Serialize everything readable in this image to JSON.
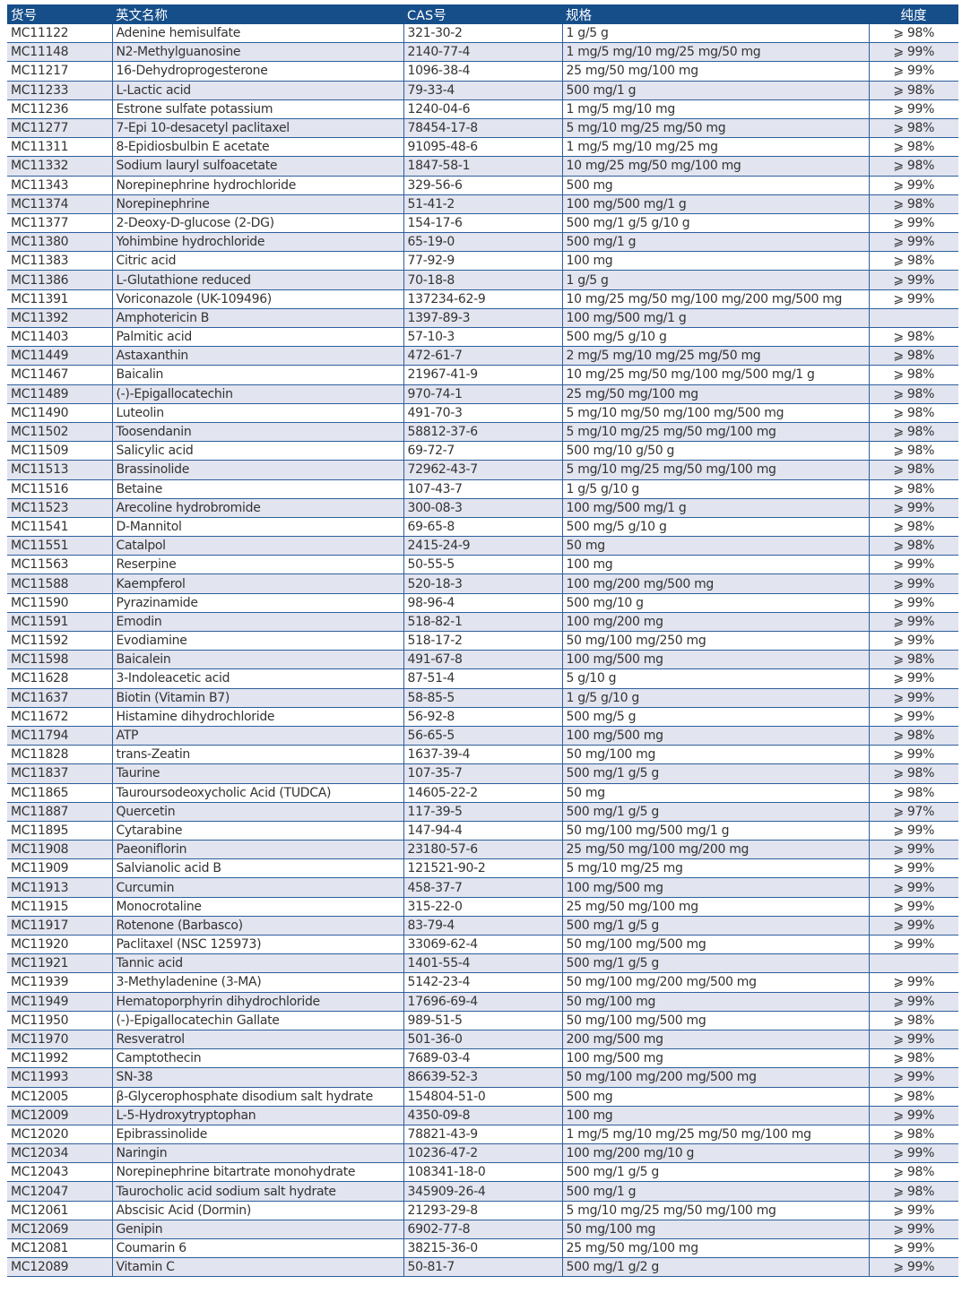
{
  "colors": {
    "header_bg": "#164e8a",
    "alt_row": "#e2e4ef",
    "grid": "#2d5f9c"
  },
  "headers": [
    "货号",
    "英文名称",
    "CAS号",
    "规格",
    "纯度"
  ],
  "rows": [
    [
      "MC11122",
      "Adenine hemisulfate",
      "321-30-2",
      "1 g/5 g",
      "⩾ 98%"
    ],
    [
      "MC11148",
      "N2-Methylguanosine",
      "2140-77-4",
      "1 mg/5 mg/10 mg/25 mg/50 mg",
      "⩾ 99%"
    ],
    [
      "MC11217",
      "16-Dehydroprogesterone",
      "1096-38-4",
      "25 mg/50 mg/100 mg",
      "⩾ 99%"
    ],
    [
      "MC11233",
      "L-Lactic acid",
      "79-33-4",
      "500 mg/1 g",
      "⩾ 98%"
    ],
    [
      "MC11236",
      "Estrone sulfate potassium",
      "1240-04-6",
      "1 mg/5 mg/10 mg",
      "⩾ 99%"
    ],
    [
      "MC11277",
      "7-Epi 10-desacetyl paclitaxel",
      "78454-17-8",
      "5 mg/10 mg/25 mg/50 mg",
      "⩾ 98%"
    ],
    [
      "MC11311",
      "8-Epidiosbulbin E acetate",
      "91095-48-6",
      "1 mg/5 mg/10 mg/25 mg",
      "⩾ 98%"
    ],
    [
      "MC11332",
      "Sodium lauryl sulfoacetate",
      "1847-58-1",
      "10 mg/25 mg/50 mg/100 mg",
      "⩾ 98%"
    ],
    [
      "MC11343",
      "Norepinephrine hydrochloride",
      "329-56-6",
      "500 mg",
      "⩾ 99%"
    ],
    [
      "MC11374",
      "Norepinephrine",
      "51-41-2",
      "100 mg/500 mg/1 g",
      "⩾ 98%"
    ],
    [
      "MC11377",
      "2-Deoxy-D-glucose (2-DG)",
      "154-17-6",
      "500 mg/1 g/5 g/10 g",
      "⩾ 99%"
    ],
    [
      "MC11380",
      "Yohimbine hydrochloride",
      "65-19-0",
      "500 mg/1 g",
      "⩾ 99%"
    ],
    [
      "MC11383",
      "Citric acid",
      "77-92-9",
      "100 mg",
      "⩾ 98%"
    ],
    [
      "MC11386",
      "L-Glutathione reduced",
      "70-18-8",
      "1 g/5 g",
      "⩾ 99%"
    ],
    [
      "MC11391",
      "Voriconazole (UK-109496)",
      "137234-62-9",
      "10 mg/25 mg/50 mg/100 mg/200 mg/500 mg",
      "⩾ 99%"
    ],
    [
      "MC11392",
      "Amphotericin B",
      "1397-89-3",
      "100 mg/500 mg/1 g",
      ""
    ],
    [
      "MC11403",
      "Palmitic acid",
      "57-10-3",
      "500 mg/5 g/10 g",
      "⩾ 98%"
    ],
    [
      "MC11449",
      "Astaxanthin",
      "472-61-7",
      "2 mg/5 mg/10 mg/25 mg/50 mg",
      "⩾ 98%"
    ],
    [
      "MC11467",
      "Baicalin",
      "21967-41-9",
      "10 mg/25 mg/50 mg/100 mg/500 mg/1 g",
      "⩾ 98%"
    ],
    [
      "MC11489",
      "(-)-Epigallocatechin",
      "970-74-1",
      "25 mg/50 mg/100 mg",
      "⩾ 98%"
    ],
    [
      "MC11490",
      "Luteolin",
      "491-70-3",
      "5 mg/10 mg/50 mg/100 mg/500 mg",
      "⩾ 98%"
    ],
    [
      "MC11502",
      "Toosendanin",
      "58812-37-6",
      "5 mg/10 mg/25 mg/50 mg/100 mg",
      "⩾ 98%"
    ],
    [
      "MC11509",
      "Salicylic acid",
      "69-72-7",
      "500 mg/10 g/50 g",
      "⩾ 98%"
    ],
    [
      "MC11513",
      "Brassinolide",
      "72962-43-7",
      "5 mg/10 mg/25 mg/50 mg/100 mg",
      "⩾ 98%"
    ],
    [
      "MC11516",
      "Betaine",
      "107-43-7",
      "1 g/5 g/10 g",
      "⩾ 98%"
    ],
    [
      "MC11523",
      "Arecoline hydrobromide",
      "300-08-3",
      "100 mg/500 mg/1 g",
      "⩾ 99%"
    ],
    [
      "MC11541",
      "D-Mannitol",
      "69-65-8",
      "500 mg/5 g/10 g",
      "⩾ 98%"
    ],
    [
      "MC11551",
      "Catalpol",
      "2415-24-9",
      "50 mg",
      "⩾ 98%"
    ],
    [
      "MC11563",
      "Reserpine",
      "50-55-5",
      "100 mg",
      "⩾ 99%"
    ],
    [
      "MC11588",
      "Kaempferol",
      "520-18-3",
      "100 mg/200 mg/500 mg",
      "⩾ 99%"
    ],
    [
      "MC11590",
      "Pyrazinamide",
      "98-96-4",
      "500 mg/10 g",
      "⩾ 99%"
    ],
    [
      "MC11591",
      "Emodin",
      "518-82-1",
      "100 mg/200 mg",
      "⩾ 99%"
    ],
    [
      "MC11592",
      "Evodiamine",
      "518-17-2",
      "50 mg/100 mg/250 mg",
      "⩾ 99%"
    ],
    [
      "MC11598",
      "Baicalein",
      "491-67-8",
      "100 mg/500 mg",
      "⩾ 98%"
    ],
    [
      "MC11628",
      "3-Indoleacetic acid",
      "87-51-4",
      "5 g/10 g",
      "⩾ 99%"
    ],
    [
      "MC11637",
      "Biotin (Vitamin B7)",
      "58-85-5",
      "1 g/5 g/10 g",
      "⩾ 99%"
    ],
    [
      "MC11672",
      "Histamine dihydrochloride",
      "56-92-8",
      "500 mg/5 g",
      "⩾ 99%"
    ],
    [
      "MC11794",
      "ATP",
      "56-65-5",
      "100 mg/500 mg",
      "⩾ 98%"
    ],
    [
      "MC11828",
      "trans-Zeatin",
      "1637-39-4",
      "50 mg/100 mg",
      "⩾ 99%"
    ],
    [
      "MC11837",
      "Taurine",
      "107-35-7",
      "500 mg/1 g/5 g",
      "⩾ 98%"
    ],
    [
      "MC11865",
      "Tauroursodeoxycholic Acid (TUDCA)",
      "14605-22-2",
      "50 mg",
      "⩾ 98%"
    ],
    [
      "MC11887",
      "Quercetin",
      "117-39-5",
      "500 mg/1 g/5 g",
      "⩾ 97%"
    ],
    [
      "MC11895",
      "Cytarabine",
      "147-94-4",
      "50 mg/100 mg/500 mg/1 g",
      "⩾ 99%"
    ],
    [
      "MC11908",
      "Paeoniflorin",
      "23180-57-6",
      "25 mg/50 mg/100 mg/200 mg",
      "⩾ 99%"
    ],
    [
      "MC11909",
      "Salvianolic acid B",
      "121521-90-2",
      "5 mg/10 mg/25 mg",
      "⩾ 99%"
    ],
    [
      "MC11913",
      "Curcumin",
      "458-37-7",
      "100 mg/500 mg",
      "⩾ 99%"
    ],
    [
      "MC11915",
      "Monocrotaline",
      "315-22-0",
      "25 mg/50 mg/100 mg",
      "⩾ 99%"
    ],
    [
      "MC11917",
      "Rotenone (Barbasco)",
      "83-79-4",
      "500 mg/1 g/5 g",
      "⩾ 99%"
    ],
    [
      "MC11920",
      "Paclitaxel (NSC 125973)",
      "33069-62-4",
      "50 mg/100 mg/500 mg",
      "⩾ 99%"
    ],
    [
      "MC11921",
      "Tannic acid",
      "1401-55-4",
      "500 mg/1 g/5 g",
      ""
    ],
    [
      "MC11939",
      "3-Methyladenine (3-MA)",
      "5142-23-4",
      "50 mg/100 mg/200 mg/500 mg",
      "⩾ 99%"
    ],
    [
      "MC11949",
      "Hematoporphyrin dihydrochloride",
      "17696-69-4",
      "50 mg/100 mg",
      "⩾ 99%"
    ],
    [
      "MC11950",
      "(-)-Epigallocatechin Gallate",
      "989-51-5",
      "50 mg/100 mg/500 mg",
      "⩾ 98%"
    ],
    [
      "MC11970",
      "Resveratrol",
      "501-36-0",
      "200 mg/500 mg",
      "⩾ 99%"
    ],
    [
      "MC11992",
      "Camptothecin",
      "7689-03-4",
      "100 mg/500 mg",
      "⩾ 98%"
    ],
    [
      "MC11993",
      "SN-38",
      "86639-52-3",
      "50 mg/100 mg/200 mg/500 mg",
      "⩾ 99%"
    ],
    [
      "MC12005",
      "β-Glycerophosphate disodium salt hydrate",
      "154804-51-0",
      "500 mg",
      "⩾ 98%"
    ],
    [
      "MC12009",
      "L-5-Hydroxytryptophan",
      "4350-09-8",
      "100 mg",
      "⩾ 99%"
    ],
    [
      "MC12020",
      "Epibrassinolide",
      "78821-43-9",
      "1 mg/5 mg/10 mg/25 mg/50 mg/100 mg",
      "⩾ 98%"
    ],
    [
      "MC12034",
      "Naringin",
      "10236-47-2",
      "100 mg/200 mg/10 g",
      "⩾ 99%"
    ],
    [
      "MC12043",
      "Norepinephrine bitartrate monohydrate",
      "108341-18-0",
      "500 mg/1 g/5 g",
      "⩾ 98%"
    ],
    [
      "MC12047",
      "Taurocholic acid sodium salt hydrate",
      "345909-26-4",
      "500 mg/1 g",
      "⩾ 98%"
    ],
    [
      "MC12061",
      "Abscisic Acid (Dormin)",
      "21293-29-8",
      "5 mg/10 mg/25 mg/50 mg/100 mg",
      "⩾ 99%"
    ],
    [
      "MC12069",
      "Genipin",
      "6902-77-8",
      "50 mg/100 mg",
      "⩾ 99%"
    ],
    [
      "MC12081",
      "Coumarin 6",
      "38215-36-0",
      "25 mg/50 mg/100 mg",
      "⩾ 99%"
    ],
    [
      "MC12089",
      "Vitamin C",
      "50-81-7",
      "500 mg/1 g/2 g",
      "⩾ 99%"
    ]
  ]
}
